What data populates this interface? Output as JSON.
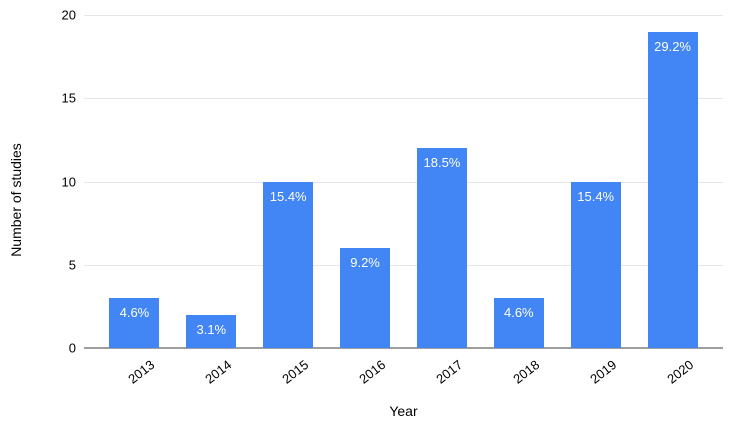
{
  "chart_data": {
    "type": "bar",
    "title": "",
    "xlabel": "Year",
    "ylabel": "Number of studies",
    "categories": [
      "2013",
      "2014",
      "2015",
      "2016",
      "2017",
      "2018",
      "2019",
      "2020"
    ],
    "values": [
      3,
      2,
      10,
      6,
      12,
      3,
      10,
      19
    ],
    "bar_labels": [
      "4.6%",
      "3.1%",
      "15.4%",
      "9.2%",
      "18.5%",
      "4.6%",
      "15.4%",
      "29.2%"
    ],
    "ylim": [
      0,
      20
    ],
    "yticks": [
      0,
      5,
      10,
      15,
      20
    ],
    "grid": "horizontal",
    "legend_position": "none",
    "colors": {
      "bar": "#4285F4",
      "bar_label_text": "#ffffff",
      "gridline": "#e6e6e6",
      "baseline": "#9e9e9e",
      "axis_text": "#000000",
      "background": "#ffffff"
    }
  }
}
